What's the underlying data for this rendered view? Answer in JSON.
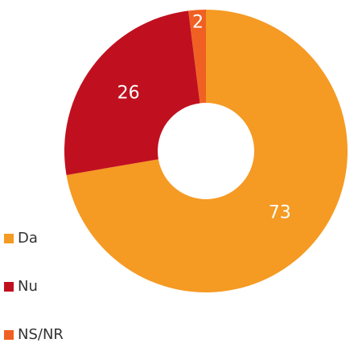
{
  "chart_data": {
    "type": "donut",
    "categories": [
      "Da",
      "Nu",
      "NS/NR"
    ],
    "values": [
      73,
      26,
      2
    ],
    "colors": [
      "#f59a23",
      "#c0101f",
      "#f06022"
    ],
    "legend": "left-bottom"
  }
}
